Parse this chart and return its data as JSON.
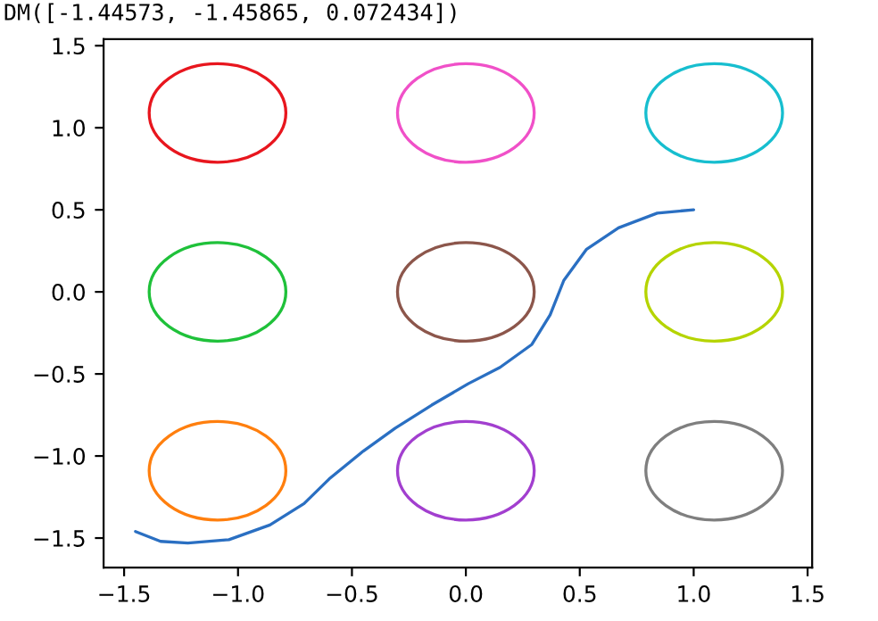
{
  "chart_data": {
    "type": "line",
    "title": "DM([-1.44573, -1.45865, 0.072434])",
    "xlim": [
      -1.59,
      1.52
    ],
    "ylim": [
      -1.68,
      1.54
    ],
    "xticks": [
      {
        "value": -1.5,
        "label": "−1.5"
      },
      {
        "value": -1.0,
        "label": "−1.0"
      },
      {
        "value": -0.5,
        "label": "−0.5"
      },
      {
        "value": 0,
        "label": "0.0"
      },
      {
        "value": 0.5,
        "label": "0.5"
      },
      {
        "value": 1.0,
        "label": "1.0"
      },
      {
        "value": 1.5,
        "label": "1.5"
      }
    ],
    "yticks": [
      {
        "value": -1.5,
        "label": "−1.5"
      },
      {
        "value": -1.0,
        "label": "−1.0"
      },
      {
        "value": -0.5,
        "label": "−0.5"
      },
      {
        "value": 0,
        "label": "0.0"
      },
      {
        "value": 0.5,
        "label": "0.5"
      },
      {
        "value": 1.0,
        "label": "1.0"
      },
      {
        "value": 1.5,
        "label": "1.5"
      }
    ],
    "grid": false,
    "marker": "none",
    "line_style": "solid",
    "series": [
      {
        "color": "#2a6fc2",
        "x": [
          -1.45,
          -1.34,
          -1.22,
          -1.04,
          -0.86,
          -0.71,
          -0.6,
          -0.45,
          -0.31,
          -0.15,
          0.01,
          0.15,
          0.29,
          0.37,
          0.43,
          0.53,
          0.67,
          0.84,
          1.0
        ],
        "values": [
          -1.46,
          -1.52,
          -1.53,
          -1.51,
          -1.42,
          -1.29,
          -1.14,
          -0.97,
          -0.83,
          -0.69,
          -0.56,
          -0.46,
          -0.32,
          -0.14,
          0.07,
          0.26,
          0.39,
          0.48,
          0.5
        ]
      }
    ]
  }
}
